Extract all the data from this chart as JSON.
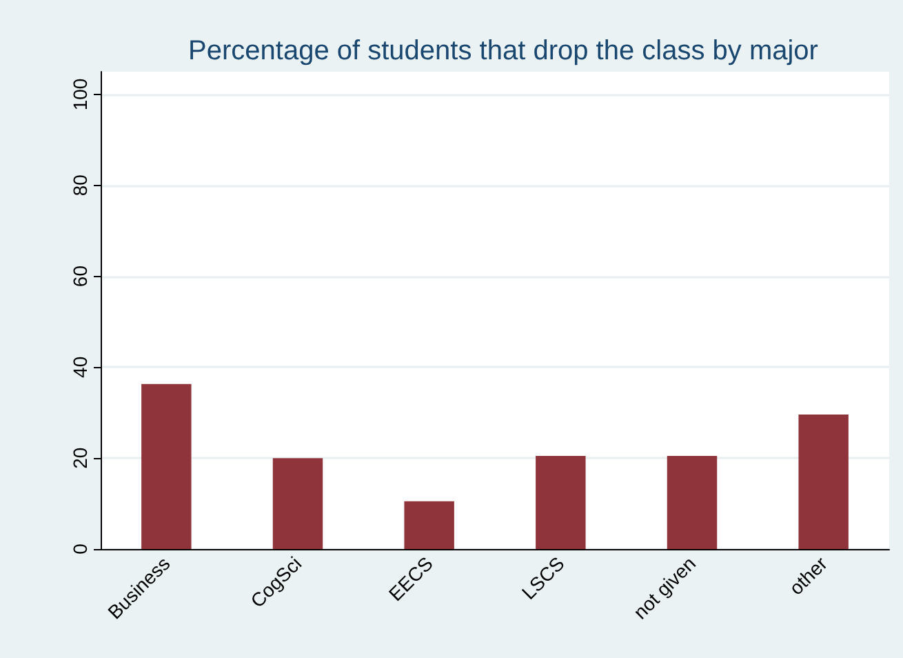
{
  "chart_data": {
    "type": "bar",
    "title": "Percentage of students that drop the class by major",
    "categories": [
      "Business",
      "CogSci",
      "EECS",
      "LSCS",
      "not given",
      "other"
    ],
    "values": [
      36.3,
      20.0,
      10.5,
      20.5,
      20.5,
      29.6
    ],
    "color": "#8f343b",
    "ylim": [
      0,
      105
    ],
    "yticks": [
      0,
      20,
      40,
      60,
      80,
      100
    ],
    "grid": "y"
  }
}
